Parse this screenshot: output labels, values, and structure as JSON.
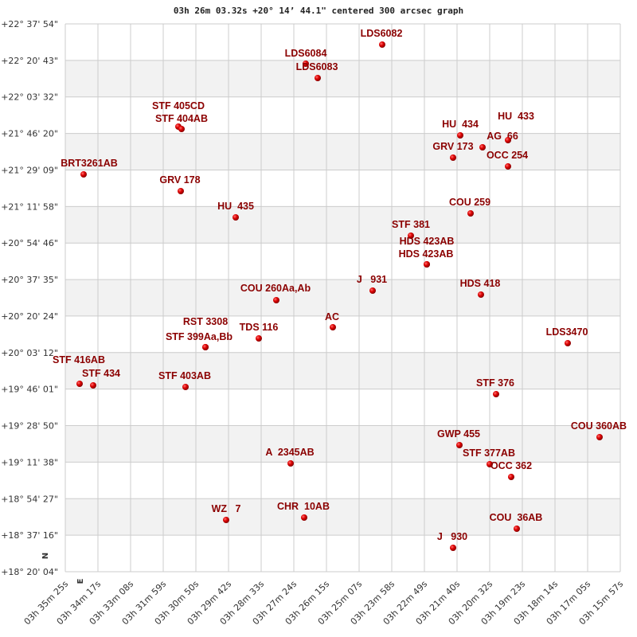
{
  "chart_data": {
    "type": "scatter",
    "title": "03h 26m 03.32s +20° 14’ 44.1\" centered 300 arcsec graph",
    "xlabel": "",
    "ylabel": "",
    "x_tick_labels": [
      "03h 35m 25s",
      "03h 34m 17s",
      "03h 33m 08s",
      "03h 31m 59s",
      "03h 30m 50s",
      "03h 29m 42s",
      "03h 28m 33s",
      "03h 27m 24s",
      "03h 26m 15s",
      "03h 25m 07s",
      "03h 23m 58s",
      "03h 22m 49s",
      "03h 21m 40s",
      "03h 20m 32s",
      "03h 19m 23s",
      "03h 18m 14s",
      "03h 17m 05s",
      "03h 15m 57s"
    ],
    "y_tick_labels": [
      "+22° 37' 54\"",
      "+22° 20' 43\"",
      "+22° 03' 32\"",
      "+21° 46' 20\"",
      "+21° 29' 09\"",
      "+21° 11' 58\"",
      "+20° 54' 46\"",
      "+20° 37' 35\"",
      "+20° 20' 24\"",
      "+20° 03' 12\"",
      "+19° 46' 01\"",
      "+19° 28' 50\"",
      "+19° 11' 38\"",
      "+18° 54' 27\"",
      "+18° 37' 16\"",
      "+18° 20' 04\""
    ],
    "compass": {
      "north": "N",
      "east": "E"
    },
    "grid": true,
    "banded_rows": true,
    "point_color": "#cc0000",
    "label_color": "#8b0000",
    "stars": [
      "LDS6082",
      "LDS6084",
      "LDS6083",
      "STF 405CD",
      "STF 404AB",
      "HU  434",
      "AG  66",
      "HU  433",
      "GRV 173",
      "OCC 254",
      "BRT3261AB",
      "GRV 178",
      "HU  435",
      "COU 259",
      "STF 381",
      "HDS 423AB",
      "HDS 423AB",
      "J   931",
      "COU 260Aa,Ab",
      "HDS 418",
      "AC",
      "TDS 116",
      "RST 3308",
      "STF 399Aa,Bb",
      "LDS3470",
      "STF 416AB",
      "STF 434",
      "STF 403AB",
      "STF 376",
      "COU 360AB",
      "GWP 455",
      "STF 377AB",
      "OCC 362",
      "A  2345AB",
      "WZ   7",
      "CHR  10AB",
      "COU  36AB",
      "J   930"
    ]
  }
}
